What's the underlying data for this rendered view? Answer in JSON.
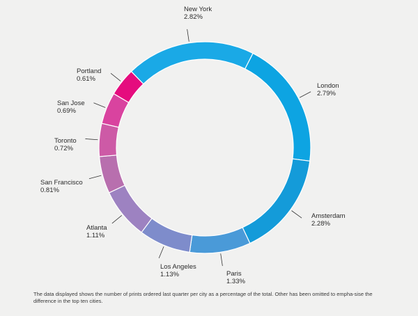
{
  "chart_data": {
    "type": "pie",
    "donut": true,
    "unit": "%",
    "legend": "none",
    "categories": [
      "New York",
      "London",
      "Amsterdam",
      "Paris",
      "Los Angeles",
      "Atlanta",
      "San Francisco",
      "Toronto",
      "San Jose",
      "Portland"
    ],
    "values": [
      2.82,
      2.79,
      2.28,
      1.33,
      1.13,
      1.11,
      0.81,
      0.72,
      0.69,
      0.61
    ],
    "value_labels": [
      "2.82%",
      "2.79%",
      "2.28%",
      "1.33%",
      "1.13%",
      "1.11%",
      "0.81%",
      "0.72%",
      "0.69%",
      "0.61%"
    ],
    "colors": [
      "#1aa9e6",
      "#0da4e2",
      "#149bd9",
      "#4a9ad8",
      "#7e8ccb",
      "#9d82c1",
      "#b86fae",
      "#cd5aa6",
      "#d9439f",
      "#e50c7e"
    ],
    "caption": "The data displayed shows the number of prints ordered last quarter per city as a percentage of the total. Other has been omitted to empha-sise the difference in the top ten cities."
  }
}
